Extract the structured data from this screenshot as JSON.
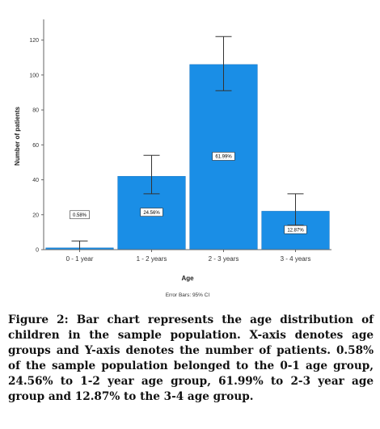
{
  "chart_data": {
    "type": "bar",
    "categories": [
      "0 - 1 year",
      "1 - 2 years",
      "2 - 3 years",
      "3 - 4 years"
    ],
    "values": [
      1,
      42,
      106,
      22
    ],
    "data_labels": [
      "0.58%",
      "24.56%",
      "61.99%",
      "12.87%"
    ],
    "error_bars": [
      {
        "low": 0,
        "high": 5
      },
      {
        "low": 32,
        "high": 54
      },
      {
        "low": 91,
        "high": 122
      },
      {
        "low": 14,
        "high": 32
      }
    ],
    "xlabel": "Age",
    "ylabel": "Number of patients",
    "yticks": [
      0,
      20,
      40,
      60,
      80,
      100,
      120
    ],
    "ylim": [
      0,
      130
    ],
    "grid": false,
    "footnote": "Error Bars: 95% CI",
    "colors": {
      "bar": "#1a8ee6",
      "bar_edge": "#0f6fbf",
      "axis": "#666666",
      "error": "#333333"
    }
  },
  "caption": "Figure 2: Bar chart represents the age distribution of children in the sample population. X-axis denotes age groups and Y-axis denotes the number of patients. 0.58% of the sample population belonged to the 0-1 age group, 24.56% to 1-2 year age group, 61.99% to 2-3 year age group and 12.87% to the 3-4 age group."
}
